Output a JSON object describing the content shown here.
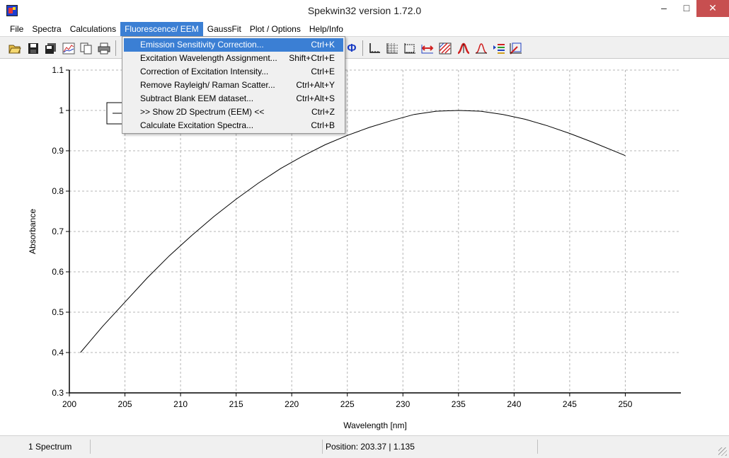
{
  "window": {
    "title": "Spekwin32 version 1.72.0"
  },
  "menu": [
    {
      "label": "File"
    },
    {
      "label": "Spectra"
    },
    {
      "label": "Calculations"
    },
    {
      "label": "Fluorescence/ EEM"
    },
    {
      "label": "GaussFit"
    },
    {
      "label": "Plot / Options"
    },
    {
      "label": "Help/Info"
    }
  ],
  "dropdown": {
    "items": [
      {
        "label": "Emission Sensitivity Correction...",
        "shortcut": "Ctrl+K"
      },
      {
        "label": "Excitation Wavelength Assignment...",
        "shortcut": "Shift+Ctrl+E"
      },
      {
        "label": "Correction of Excitation Intensity...",
        "shortcut": "Ctrl+E"
      },
      {
        "label": "Remove Rayleigh/ Raman Scatter...",
        "shortcut": "Ctrl+Alt+Y"
      },
      {
        "label": "Subtract Blank EEM dataset...",
        "shortcut": "Ctrl+Alt+S"
      },
      {
        "label": ">> Show 2D Spectrum (EEM) <<",
        "shortcut": "Ctrl+Z"
      },
      {
        "label": "Calculate Excitation Spectra...",
        "shortcut": "Ctrl+B"
      }
    ]
  },
  "toolbar": {
    "icons": [
      "open-folder-icon",
      "save-icon",
      "save-all-icon",
      "import-chart-icon",
      "copy-icon",
      "print-icon",
      "phi-icon",
      "axes-icon",
      "grid-icon",
      "zoom-box-icon",
      "range-icon",
      "hatch-icon",
      "peak-red-icon",
      "peak-icon",
      "legend-list-icon",
      "cursor-pick-icon"
    ],
    "phi_label": "Φ"
  },
  "chart_data": {
    "type": "line",
    "xlabel": "Wavelength [nm]",
    "ylabel": "Absorbance",
    "xlim": [
      200,
      255
    ],
    "ylim": [
      0.3,
      1.1
    ],
    "xticks": [
      "200",
      "205",
      "210",
      "215",
      "220",
      "225",
      "230",
      "235",
      "240",
      "245",
      "250"
    ],
    "yticks": [
      "0.3",
      "0.4",
      "0.5",
      "0.6",
      "0.7",
      "0.8",
      "0.9",
      "1",
      "1.1"
    ],
    "grid": true,
    "series": [
      {
        "x": [
          201,
          203,
          205,
          207,
          209,
          211,
          213,
          215,
          217,
          219,
          221,
          223,
          225,
          227,
          229,
          231,
          233,
          235,
          237,
          239,
          241,
          243,
          245,
          247,
          250
        ],
        "y": [
          0.4,
          0.465,
          0.525,
          0.585,
          0.64,
          0.69,
          0.737,
          0.78,
          0.82,
          0.856,
          0.887,
          0.915,
          0.938,
          0.958,
          0.975,
          0.99,
          0.998,
          1.0,
          0.998,
          0.99,
          0.978,
          0.962,
          0.943,
          0.922,
          0.888
        ],
        "color": "#000000"
      }
    ]
  },
  "statusbar": {
    "count": "1 Spectrum",
    "middle": "",
    "position": "Position: 203.37  |  1.135"
  }
}
